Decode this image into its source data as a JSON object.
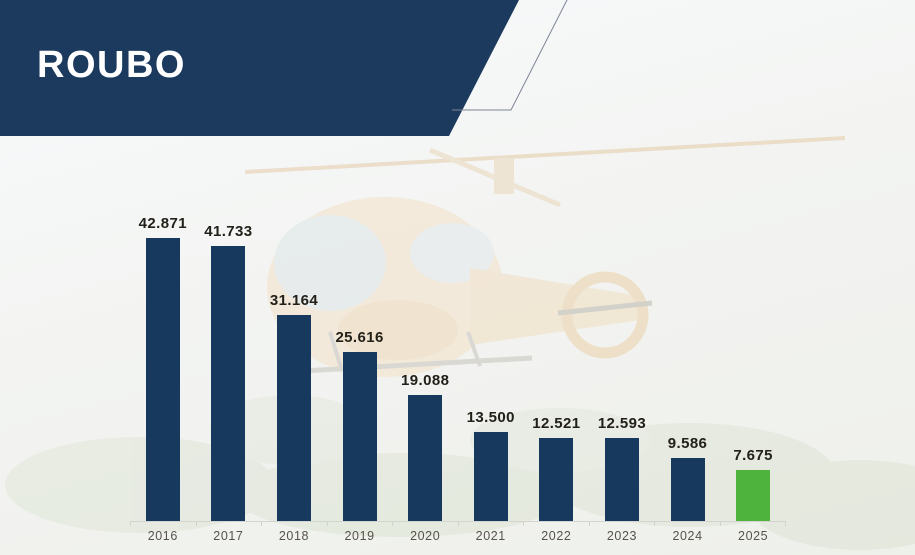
{
  "header": {
    "title": "ROUBO"
  },
  "colors": {
    "banner_navy": "#1B3A5E",
    "bar_navy": "#17395E",
    "bar_highlight_green": "#4DB33C",
    "value_label": "#222019",
    "year_label": "#57524C",
    "axis_line": "#D3D3D0",
    "accent_outline": "#7D8696"
  },
  "chart_data": {
    "type": "bar",
    "title": "ROUBO",
    "categories": [
      "2016",
      "2017",
      "2018",
      "2019",
      "2020",
      "2021",
      "2022",
      "2023",
      "2024",
      "2025"
    ],
    "values": [
      42871,
      41733,
      31164,
      25616,
      19088,
      13500,
      12521,
      12593,
      9586,
      7675
    ],
    "value_labels": [
      "42.871",
      "41.733",
      "31.164",
      "25.616",
      "19.088",
      "13.500",
      "12.521",
      "12.593",
      "9.586",
      "7.675"
    ],
    "highlight_index": 9,
    "xlabel": "",
    "ylabel": "",
    "ylim": [
      0,
      43000
    ],
    "grid": false,
    "legend": false,
    "data_labels_position": "above-bars"
  }
}
